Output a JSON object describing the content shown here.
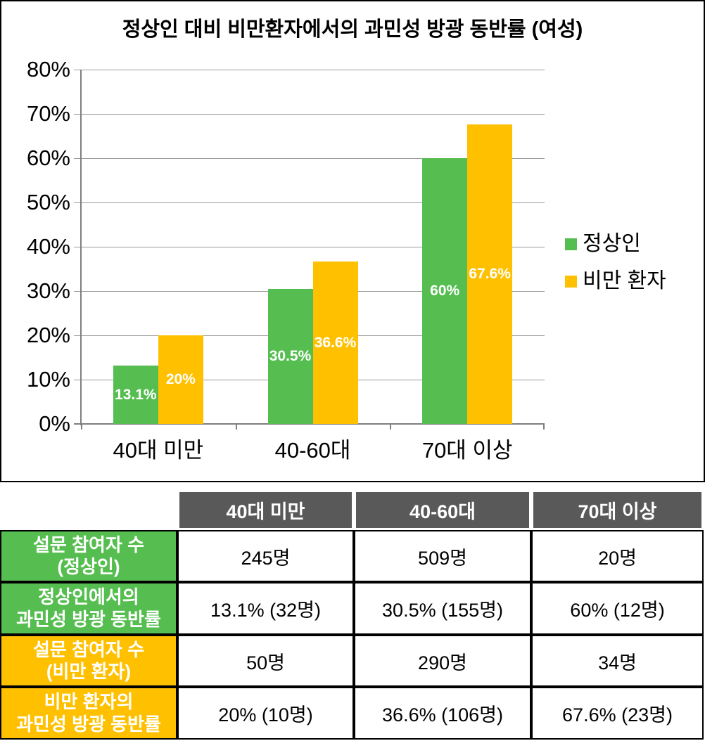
{
  "chart_data": {
    "type": "bar",
    "title": "정상인 대비 비만환자에서의 과민성 방광 동반률 (여성)",
    "categories": [
      "40대 미만",
      "40-60대",
      "70대 이상"
    ],
    "series": [
      {
        "name": "정상인",
        "color": "#56BE50",
        "values": [
          13.1,
          30.5,
          60
        ],
        "data_labels": [
          "13.1%",
          "30.5%",
          "60%"
        ]
      },
      {
        "name": "비만 환자",
        "color": "#FFC000",
        "values": [
          20,
          36.6,
          67.6
        ],
        "data_labels": [
          "20%",
          "36.6%",
          "67.6%"
        ]
      }
    ],
    "xlabel": "",
    "ylabel": "",
    "ylim": [
      0,
      80
    ],
    "ytick_labels": [
      "0%",
      "10%",
      "20%",
      "30%",
      "40%",
      "50%",
      "60%",
      "70%",
      "80%"
    ],
    "grid": true,
    "legend_position": "right"
  },
  "table": {
    "column_headers": [
      "40대 미만",
      "40-60대",
      "70대 이상"
    ],
    "rows": [
      {
        "header": "설문 참여자 수\n(정상인)",
        "group": "normal",
        "values": [
          "245명",
          "509명",
          "20명"
        ]
      },
      {
        "header": "정상인에서의\n과민성 방광 동반률",
        "group": "normal",
        "values": [
          "13.1% (32명)",
          "30.5% (155명)",
          "60% (12명)"
        ]
      },
      {
        "header": "설문 참여자 수\n(비만 환자)",
        "group": "obese",
        "values": [
          "50명",
          "290명",
          "34명"
        ]
      },
      {
        "header": "비만 환자의\n과민성 방광 동반률",
        "group": "obese",
        "values": [
          "20% (10명)",
          "36.6% (106명)",
          "67.6% (23명)"
        ]
      }
    ]
  },
  "colors": {
    "normal_green": "#56BE50",
    "obese_yellow": "#FFC000",
    "table_header_gray": "#595959",
    "gridline_gray": "#9a9a9a",
    "axis_gray": "#7f7f7f"
  }
}
